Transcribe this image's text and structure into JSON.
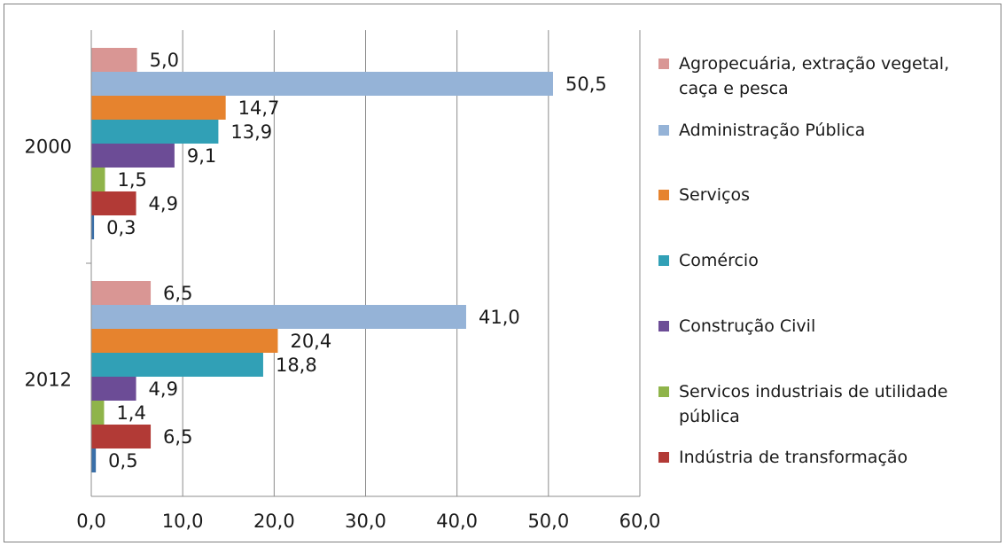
{
  "chart_data": {
    "type": "bar",
    "orientation": "horizontal",
    "categories": [
      "2000",
      "2012"
    ],
    "series": [
      {
        "name": "Agropecuária, extração vegetal, caça e pesca",
        "color": "#d99694",
        "values": [
          5.0,
          6.5
        ],
        "labels": [
          "5,0",
          "6,5"
        ]
      },
      {
        "name": "Administração Pública",
        "color": "#95b3d7",
        "values": [
          50.5,
          41.0
        ],
        "labels": [
          "50,5",
          "41,0"
        ]
      },
      {
        "name": "Serviços",
        "color": "#e6832e",
        "values": [
          14.7,
          20.4
        ],
        "labels": [
          "14,7",
          "20,4"
        ]
      },
      {
        "name": "Comércio",
        "color": "#31a0b6",
        "values": [
          13.9,
          18.8
        ],
        "labels": [
          "13,9",
          "18,8"
        ]
      },
      {
        "name": "Construção Civil",
        "color": "#6c4c96",
        "values": [
          9.1,
          4.9
        ],
        "labels": [
          "9,1",
          "4,9"
        ]
      },
      {
        "name": "Servicos industriais de utilidade pública",
        "color": "#8fb44a",
        "values": [
          1.5,
          1.4
        ],
        "labels": [
          "1,5",
          "1,4"
        ]
      },
      {
        "name": "Indústria de transformação",
        "color": "#b23a36",
        "values": [
          4.9,
          6.5
        ],
        "labels": [
          "4,9",
          "6,5"
        ]
      },
      {
        "name": "",
        "color": "#3a6fa8",
        "values": [
          0.3,
          0.5
        ],
        "labels": [
          "0,3",
          "0,5"
        ]
      }
    ],
    "xlim": [
      0,
      60
    ],
    "x_ticks": [
      "0,0",
      "10,0",
      "20,0",
      "30,0",
      "40,0",
      "50,0",
      "60,0"
    ],
    "gridlines": "vertical",
    "legend_position": "right",
    "title": "",
    "xlabel": "",
    "ylabel": ""
  }
}
